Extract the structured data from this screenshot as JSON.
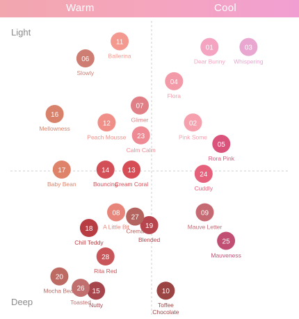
{
  "header": {
    "warm_label": "Warm",
    "cool_label": "Cool",
    "colors": {
      "warm": "#f2a6ae",
      "cool": "#f19fd2",
      "text": "#ffffff"
    }
  },
  "axis": {
    "top_label": "Light",
    "bottom_label": "Deep"
  },
  "chart_data": {
    "type": "scatter",
    "title": "",
    "x_axis": {
      "left": "Warm",
      "right": "Cool",
      "range": [
        -10,
        10
      ]
    },
    "y_axis": {
      "top": "Light",
      "bottom": "Deep",
      "range": [
        -10,
        10
      ]
    },
    "grid": "dashed crosshair at origin",
    "points": [
      {
        "num": "01",
        "name": "Dear Bunny",
        "x": 4.9,
        "y": 8.7,
        "color": "#f4a3c0"
      },
      {
        "num": "02",
        "name": "Pink Some",
        "x": 3.5,
        "y": 3.4,
        "color": "#f6a0ae"
      },
      {
        "num": "03",
        "name": "Whispering",
        "x": 8.2,
        "y": 8.7,
        "color": "#e9a6d1"
      },
      {
        "num": "04",
        "name": "Flora",
        "x": 1.9,
        "y": 6.3,
        "color": "#f39aa8"
      },
      {
        "num": "05",
        "name": "Rora Pink",
        "x": 5.9,
        "y": 1.9,
        "color": "#d9537a"
      },
      {
        "num": "06",
        "name": "Slowly",
        "x": -5.6,
        "y": 7.9,
        "color": "#cd7d71"
      },
      {
        "num": "07",
        "name": "Glimer",
        "x": -1.0,
        "y": 4.6,
        "color": "#e07f86"
      },
      {
        "num": "08",
        "name": "A Little Bit",
        "x": -3.0,
        "y": -2.9,
        "color": "#e7857a"
      },
      {
        "num": "09",
        "name": "Mauve Letter",
        "x": 4.5,
        "y": -2.9,
        "color": "#c56a73"
      },
      {
        "num": "10",
        "name": "Toffee Chocolate",
        "x": 1.2,
        "y": -8.4,
        "color": "#9b4444"
      },
      {
        "num": "11",
        "name": "Ballerina",
        "x": -2.7,
        "y": 9.1,
        "color": "#f3998f"
      },
      {
        "num": "12",
        "name": "Peach Mousse",
        "x": -3.8,
        "y": 3.4,
        "color": "#f08f88"
      },
      {
        "num": "13",
        "name": "Cream Coral",
        "x": -1.7,
        "y": 0.1,
        "color": "#d64d55"
      },
      {
        "num": "14",
        "name": "Bouncing",
        "x": -3.9,
        "y": 0.1,
        "color": "#d24f57"
      },
      {
        "num": "15",
        "name": "Nutty",
        "x": -4.7,
        "y": -8.4,
        "color": "#a7454d"
      },
      {
        "num": "16",
        "name": "Mellowness",
        "x": -8.2,
        "y": 4.0,
        "color": "#d8826b"
      },
      {
        "num": "17",
        "name": "Baby Bean",
        "x": -7.6,
        "y": 0.1,
        "color": "#de8269"
      },
      {
        "num": "18",
        "name": "Chill Teddy",
        "x": -5.3,
        "y": -4.0,
        "color": "#b83d42"
      },
      {
        "num": "19",
        "name": "Blended",
        "x": -0.2,
        "y": -3.8,
        "color": "#b7454d"
      },
      {
        "num": "20",
        "name": "Mocha Bear",
        "x": -7.8,
        "y": -7.4,
        "color": "#bd6a62"
      },
      {
        "num": "23",
        "name": "Calm Calm",
        "x": -0.9,
        "y": 2.5,
        "color": "#ee8a93"
      },
      {
        "num": "24",
        "name": "Cuddly",
        "x": 4.4,
        "y": -0.2,
        "color": "#e4607b"
      },
      {
        "num": "25",
        "name": "Mauveness",
        "x": 6.3,
        "y": -4.9,
        "color": "#c14f73"
      },
      {
        "num": "26",
        "name": "Toasted",
        "x": -6.0,
        "y": -8.2,
        "color": "#c06f6e"
      },
      {
        "num": "27",
        "name": "Crema",
        "x": -1.4,
        "y": -3.2,
        "color": "#b4645e"
      },
      {
        "num": "28",
        "name": "Rita Red",
        "x": -3.9,
        "y": -6.0,
        "color": "#c85659"
      }
    ]
  }
}
